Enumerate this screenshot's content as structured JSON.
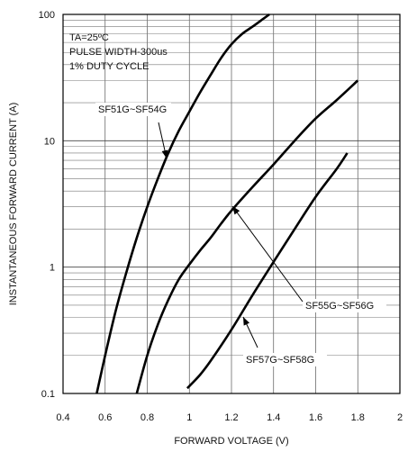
{
  "chart_data": {
    "type": "line",
    "title": "",
    "xlabel": "FORWARD VOLTAGE (V)",
    "ylabel": "INSTANTANEOUS FORWARD CURRENT (A)",
    "x_scale": "linear",
    "y_scale": "log",
    "xlim": [
      0.4,
      2.0
    ],
    "ylim": [
      0.1,
      100
    ],
    "x_ticks": [
      "0.4",
      "0.6",
      "0.8",
      "1",
      "1.2",
      "1.4",
      "1.6",
      "1.8",
      "2"
    ],
    "y_ticks": [
      "0.1",
      "1",
      "10",
      "100"
    ],
    "grid": true,
    "annotations": [
      "TA=25ºC",
      "PULSE WIDTH-300us",
      "1% DUTY CYCLE"
    ],
    "series": [
      {
        "name": "SF51G~SF54G",
        "x": [
          0.56,
          0.6,
          0.65,
          0.7,
          0.75,
          0.8,
          0.85,
          0.9,
          0.95,
          1.0,
          1.05,
          1.1,
          1.15,
          1.2,
          1.25,
          1.3,
          1.35,
          1.38
        ],
        "y": [
          0.1,
          0.2,
          0.45,
          0.9,
          1.7,
          3.0,
          5.0,
          8.0,
          12.0,
          17.0,
          24.0,
          33.0,
          45.0,
          58.0,
          70.0,
          80.0,
          92.0,
          100.0
        ]
      },
      {
        "name": "SF55G~SF56G",
        "x": [
          0.75,
          0.8,
          0.85,
          0.9,
          0.95,
          1.0,
          1.05,
          1.1,
          1.15,
          1.2,
          1.3,
          1.4,
          1.5,
          1.6,
          1.7,
          1.8
        ],
        "y": [
          0.1,
          0.2,
          0.35,
          0.55,
          0.8,
          1.05,
          1.35,
          1.7,
          2.2,
          2.8,
          4.3,
          6.5,
          10.0,
          15.0,
          21.0,
          30.0
        ]
      },
      {
        "name": "SF57G~SF58G",
        "x": [
          0.99,
          1.05,
          1.1,
          1.2,
          1.3,
          1.4,
          1.5,
          1.6,
          1.7,
          1.75
        ],
        "y": [
          0.11,
          0.14,
          0.18,
          0.32,
          0.6,
          1.1,
          2.0,
          3.6,
          6.0,
          8.0
        ]
      }
    ]
  }
}
